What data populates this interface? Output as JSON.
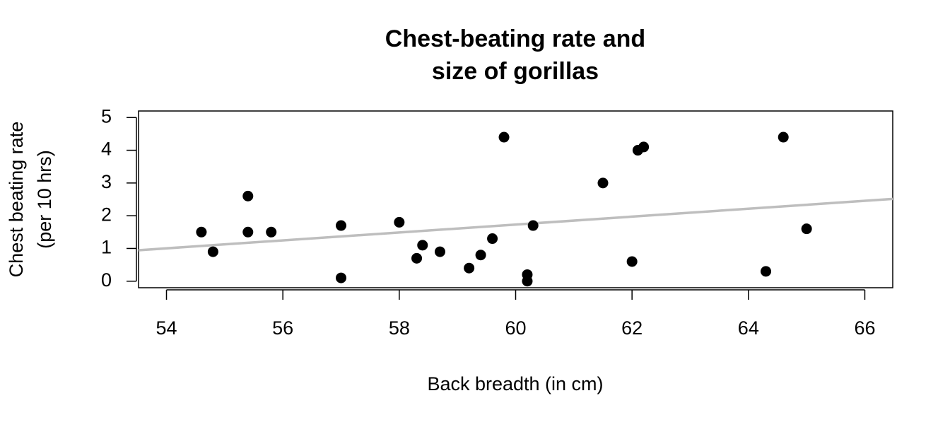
{
  "chart_data": {
    "type": "scatter",
    "title": [
      "Chest-beating rate and",
      "size of gorillas"
    ],
    "x_label": "Back breadth (in cm)",
    "y_label": [
      "Chest beating rate",
      "(per 10 hrs)"
    ],
    "x": [
      54.6,
      54.8,
      55.4,
      55.4,
      55.8,
      57.0,
      57.0,
      58.0,
      58.3,
      58.4,
      58.7,
      59.2,
      59.4,
      59.6,
      59.8,
      60.2,
      60.2,
      60.3,
      61.5,
      62.0,
      62.1,
      62.2,
      64.3,
      64.6,
      65.0
    ],
    "values": [
      1.5,
      0.9,
      2.6,
      1.5,
      1.5,
      1.7,
      0.1,
      1.8,
      0.7,
      1.1,
      0.9,
      0.4,
      0.8,
      1.3,
      4.4,
      0.2,
      0.0,
      1.7,
      3.0,
      0.6,
      4.0,
      4.1,
      0.3,
      4.4,
      1.6
    ],
    "color": "#000000",
    "fit": {
      "intercept": -5.53,
      "slope": 0.121,
      "color": "#bebebe"
    },
    "xlim": [
      53.52,
      66.48
    ],
    "xticks": [
      54,
      56,
      58,
      60,
      62,
      64,
      66
    ],
    "ylim": [
      -0.2,
      5.2
    ],
    "yticks": [
      0,
      1,
      2,
      3,
      4,
      5
    ]
  }
}
